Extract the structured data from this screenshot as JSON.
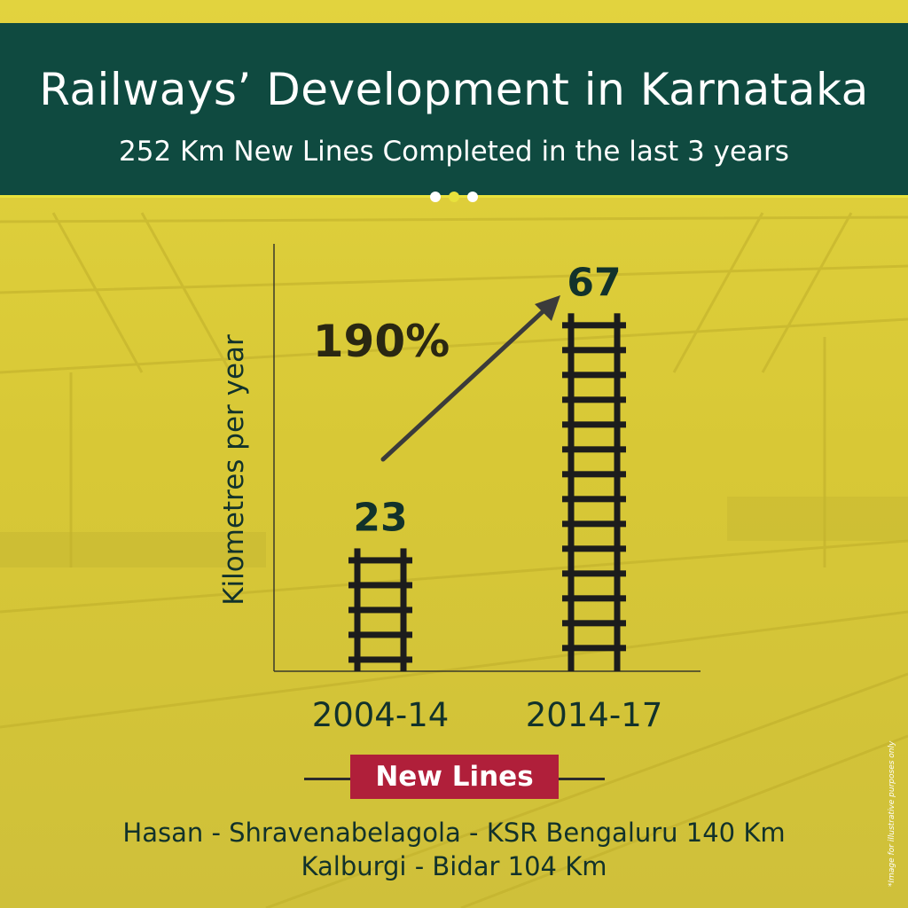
{
  "header": {
    "title": "Railways’ Development in Karnataka",
    "subtitle": "252 Km New Lines Completed in the last 3 years",
    "dots": [
      "#ffffff",
      "#e8e23c",
      "#ffffff"
    ]
  },
  "colors": {
    "header_bg": "#0f4a40",
    "accent_yellow": "#e8e23c",
    "background_yellow": "#d9c93a",
    "badge_red": "#b01f3a",
    "text_dark": "#12322b"
  },
  "chart_data": {
    "type": "bar",
    "bar_style": "railway-track",
    "categories": [
      "2004-14",
      "2014-17"
    ],
    "values": [
      23,
      67
    ],
    "ylabel": "Kilometres per year",
    "growth_label": "190%",
    "ylim": [
      0,
      80
    ]
  },
  "new_lines": {
    "heading": "New Lines",
    "items": [
      "Hasan - Shravenabelagola - KSR Bengaluru 140 Km",
      "Kalburgi - Bidar 104 Km"
    ]
  },
  "footnote": "*Image for illustrative purposes only"
}
